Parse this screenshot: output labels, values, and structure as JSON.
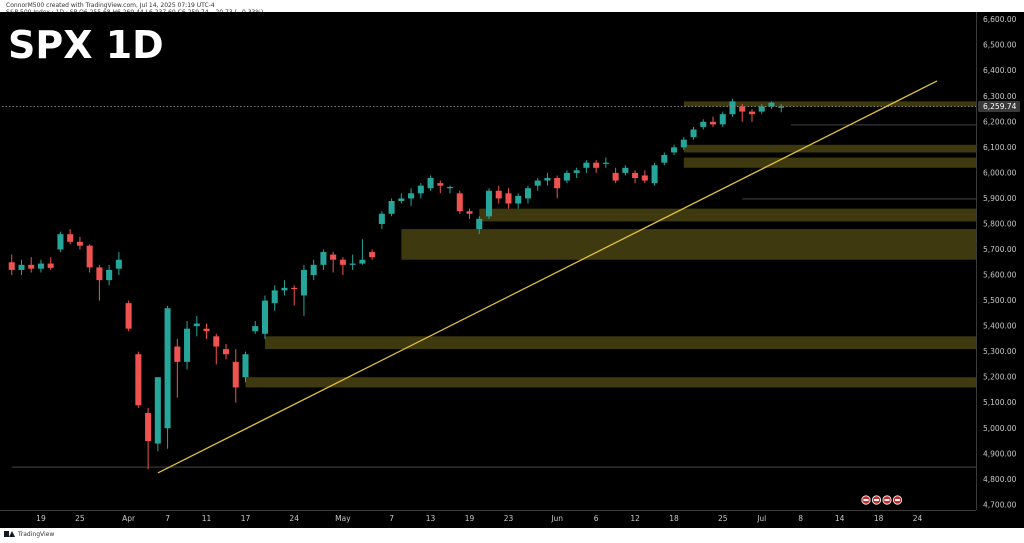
{
  "header": {
    "author_line": "ConnorM500 created with TradingView.com, Jul 14, 2025 07:19 UTC-4",
    "symbol": "S&P 500 Index · 1D · SP",
    "ohlc": [
      {
        "label": "O",
        "value": "6,255.68"
      },
      {
        "label": "H",
        "value": "6,269.44"
      },
      {
        "label": "L",
        "value": "6,237.60"
      },
      {
        "label": "C",
        "value": "6,259.74"
      },
      {
        "label": "",
        "value": "−20.73 (−0.33%)"
      }
    ]
  },
  "watermark": "SPX 1D",
  "footer": {
    "brand": "TradingView"
  },
  "colors": {
    "background": "#000000",
    "up": "#26a69a",
    "down": "#ef5350",
    "trendline": "#e0c13a",
    "zone_fill": "#4a4312",
    "text": "#c8c8c8"
  },
  "chart_data": {
    "type": "candlestick",
    "title": "SPX 1D",
    "y_axis": {
      "labels": [
        "6,600.00",
        "6,500.00",
        "6,400.00",
        "6,300.00",
        "6,200.00",
        "6,100.00",
        "6,000.00",
        "5,900.00",
        "5,800.00",
        "5,700.00",
        "5,600.00",
        "5,500.00",
        "5,400.00",
        "5,300.00",
        "5,200.00",
        "5,100.00",
        "5,000.00",
        "4,900.00",
        "4,800.00",
        "4,700.00"
      ],
      "values": [
        6600,
        6500,
        6400,
        6300,
        6200,
        6100,
        6000,
        5900,
        5800,
        5700,
        5600,
        5500,
        5400,
        5300,
        5200,
        5100,
        5000,
        4900,
        4800,
        4700
      ],
      "range": [
        4680,
        6630
      ]
    },
    "last_price": {
      "label": "6,259.74",
      "value": 6259.74
    },
    "x_axis": {
      "labels": [
        "19",
        "25",
        "Apr",
        "7",
        "11",
        "17",
        "24",
        "May",
        "7",
        "13",
        "19",
        "23",
        "Jun",
        "6",
        "12",
        "18",
        "25",
        "Jul",
        "8",
        "14",
        "18",
        "24"
      ],
      "positions": [
        3,
        7,
        12,
        16,
        20,
        24,
        29,
        34,
        39,
        43,
        47,
        51,
        56,
        60,
        64,
        68,
        73,
        77,
        81,
        85,
        89,
        93
      ]
    },
    "candles": [
      [
        5650,
        5680,
        5600,
        5620
      ],
      [
        5620,
        5660,
        5600,
        5640
      ],
      [
        5640,
        5670,
        5610,
        5625
      ],
      [
        5625,
        5660,
        5610,
        5645
      ],
      [
        5645,
        5670,
        5620,
        5628
      ],
      [
        5700,
        5770,
        5690,
        5760
      ],
      [
        5760,
        5780,
        5720,
        5730
      ],
      [
        5730,
        5750,
        5700,
        5715
      ],
      [
        5715,
        5720,
        5610,
        5630
      ],
      [
        5630,
        5640,
        5500,
        5580
      ],
      [
        5580,
        5640,
        5560,
        5620
      ],
      [
        5625,
        5690,
        5600,
        5660
      ],
      [
        5490,
        5500,
        5380,
        5390
      ],
      [
        5290,
        5300,
        5080,
        5090
      ],
      [
        5060,
        5080,
        4840,
        4950
      ],
      [
        4940,
        5200,
        4910,
        5200
      ],
      [
        5000,
        5480,
        4920,
        5470
      ],
      [
        5320,
        5350,
        5120,
        5260
      ],
      [
        5260,
        5420,
        5230,
        5390
      ],
      [
        5400,
        5440,
        5360,
        5410
      ],
      [
        5390,
        5410,
        5350,
        5380
      ],
      [
        5360,
        5370,
        5250,
        5320
      ],
      [
        5310,
        5330,
        5270,
        5290
      ],
      [
        5260,
        5310,
        5100,
        5160
      ],
      [
        5200,
        5300,
        5180,
        5290
      ],
      [
        5380,
        5420,
        5370,
        5400
      ],
      [
        5370,
        5520,
        5350,
        5500
      ],
      [
        5490,
        5560,
        5460,
        5540
      ],
      [
        5540,
        5580,
        5520,
        5550
      ],
      [
        5550,
        5560,
        5480,
        5545
      ],
      [
        5520,
        5640,
        5440,
        5620
      ],
      [
        5600,
        5660,
        5580,
        5640
      ],
      [
        5640,
        5700,
        5620,
        5690
      ],
      [
        5680,
        5690,
        5610,
        5660
      ],
      [
        5660,
        5670,
        5600,
        5640
      ],
      [
        5640,
        5680,
        5620,
        5645
      ],
      [
        5645,
        5740,
        5640,
        5660
      ],
      [
        5690,
        5700,
        5660,
        5670
      ],
      [
        5800,
        5850,
        5780,
        5840
      ],
      [
        5840,
        5900,
        5830,
        5890
      ],
      [
        5890,
        5920,
        5880,
        5900
      ],
      [
        5900,
        5940,
        5870,
        5920
      ],
      [
        5920,
        5960,
        5900,
        5950
      ],
      [
        5940,
        5990,
        5930,
        5980
      ],
      [
        5960,
        5970,
        5920,
        5950
      ],
      [
        5940,
        5950,
        5920,
        5945
      ],
      [
        5920,
        5930,
        5840,
        5850
      ],
      [
        5850,
        5860,
        5820,
        5840
      ],
      [
        5780,
        5830,
        5760,
        5820
      ],
      [
        5830,
        5940,
        5820,
        5930
      ],
      [
        5930,
        5950,
        5880,
        5900
      ],
      [
        5920,
        5940,
        5860,
        5880
      ],
      [
        5880,
        5920,
        5860,
        5910
      ],
      [
        5900,
        5950,
        5880,
        5940
      ],
      [
        5950,
        5980,
        5930,
        5970
      ],
      [
        5970,
        6000,
        5950,
        5980
      ],
      [
        5980,
        5990,
        5900,
        5940
      ],
      [
        5970,
        6010,
        5960,
        6000
      ],
      [
        6000,
        6020,
        5980,
        6010
      ],
      [
        6020,
        6050,
        6000,
        6040
      ],
      [
        6040,
        6050,
        6000,
        6020
      ],
      [
        6040,
        6060,
        6020,
        6040
      ],
      [
        6000,
        6020,
        5960,
        5970
      ],
      [
        6000,
        6030,
        5990,
        6020
      ],
      [
        6000,
        6010,
        5960,
        5980
      ],
      [
        5990,
        6010,
        5960,
        5970
      ],
      [
        5960,
        6040,
        5950,
        6030
      ],
      [
        6040,
        6080,
        6030,
        6070
      ],
      [
        6080,
        6110,
        6070,
        6100
      ],
      [
        6100,
        6140,
        6090,
        6130
      ],
      [
        6140,
        6180,
        6130,
        6170
      ],
      [
        6180,
        6210,
        6170,
        6200
      ],
      [
        6200,
        6220,
        6180,
        6190
      ],
      [
        6190,
        6240,
        6180,
        6230
      ],
      [
        6230,
        6290,
        6220,
        6280
      ],
      [
        6260,
        6270,
        6200,
        6240
      ],
      [
        6240,
        6250,
        6200,
        6230
      ],
      [
        6240,
        6270,
        6230,
        6260
      ],
      [
        6260,
        6280,
        6250,
        6275
      ],
      [
        6255.68,
        6269.44,
        6237.6,
        6259.74
      ]
    ],
    "zones": [
      [
        6280,
        6260,
        69,
        100
      ],
      [
        6110,
        6080,
        69,
        100
      ],
      [
        6060,
        6020,
        69,
        100
      ],
      [
        5860,
        5810,
        48,
        100
      ],
      [
        5780,
        5660,
        40,
        100
      ],
      [
        5360,
        5310,
        26,
        100
      ],
      [
        5200,
        5160,
        24,
        100
      ],
      [
        4850,
        4848,
        0,
        100
      ],
      [
        6190,
        6188,
        80,
        100
      ],
      [
        5900,
        5898,
        75,
        100
      ]
    ],
    "trendline": {
      "start": [
        15,
        4825
      ],
      "end": [
        95,
        6360
      ]
    },
    "x_range": [
      -1,
      99
    ],
    "grid": false
  }
}
